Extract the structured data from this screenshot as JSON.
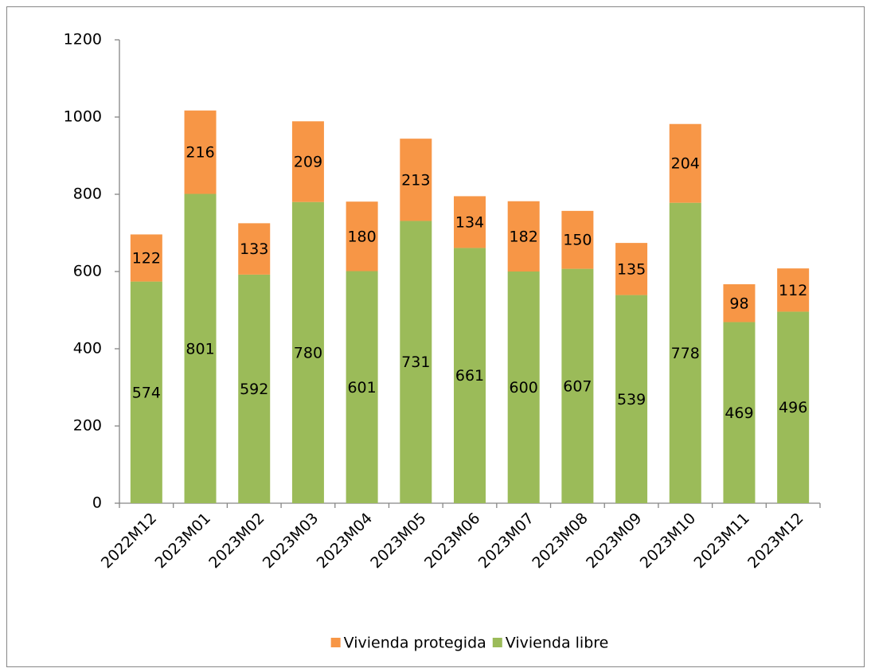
{
  "chart_data": {
    "type": "stacked_bar",
    "categories": [
      "2022M12",
      "2023M01",
      "2023M02",
      "2023M03",
      "2023M04",
      "2023M05",
      "2023M06",
      "2023M07",
      "2023M08",
      "2023M09",
      "2023M10",
      "2023M11",
      "2023M12"
    ],
    "series": [
      {
        "name": "Vivienda protegida",
        "color": "#f79646",
        "values": [
          122,
          216,
          133,
          209,
          180,
          213,
          134,
          182,
          150,
          135,
          204,
          98,
          112
        ]
      },
      {
        "name": "Vivienda libre",
        "color": "#9bbb59",
        "values": [
          574,
          801,
          592,
          780,
          601,
          731,
          661,
          600,
          607,
          539,
          778,
          469,
          496
        ]
      }
    ],
    "ylim": [
      0,
      1200
    ],
    "yticks": [
      0,
      200,
      400,
      600,
      800,
      1000,
      1200
    ],
    "legend": "bottom"
  }
}
